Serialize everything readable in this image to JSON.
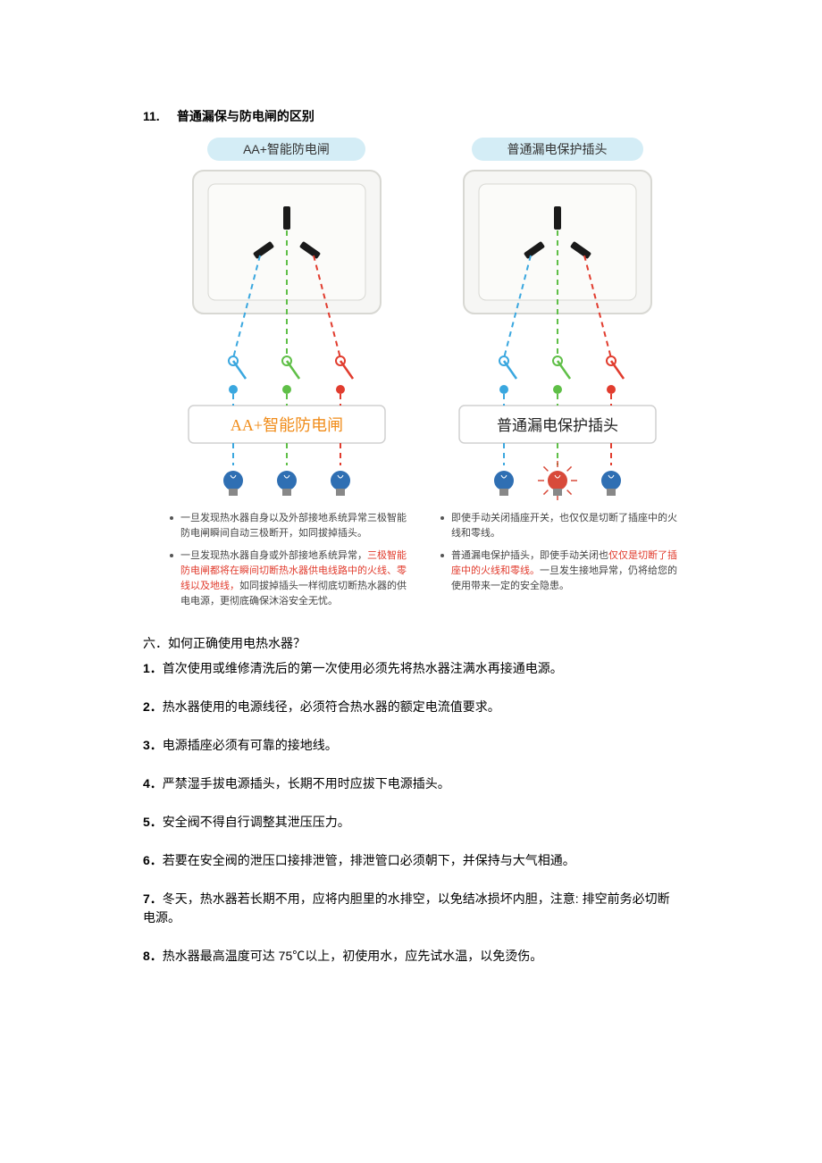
{
  "colors": {
    "live": "#e13c2e",
    "neutral": "#3aa7df",
    "ground": "#5fbf47",
    "pill_bg": "#d4edf6",
    "socket_body": "#f6f6f4",
    "socket_edge": "#d8d8d3",
    "slot": "#1a1a1a",
    "label_box_text_left": "#f08c1a",
    "bulb_off": "#2f6fb3",
    "bulb_on": "#d84a3a"
  },
  "title": {
    "num": "11.",
    "text": "普通漏保与防电闸的区别"
  },
  "left": {
    "pill": "AA+智能防电闸",
    "box_label": "AA+智能防电闸",
    "bulbs": [
      "off",
      "off",
      "off"
    ],
    "notes": [
      {
        "plain": "一旦发现热水器自身以及外部接地系统异常三极智能防电闸瞬间自动三极断开，如同拔掉插头。"
      },
      {
        "pre": "一旦发现热水器自身或外部接地系统异常，",
        "red": "三极智能防电闸都将在瞬间切断热水器供电线路中的火线、零线以及地线，",
        "post": "如同拔掉插头一样彻底切断热水器的供电电源，更彻底确保沐浴安全无忧。"
      }
    ]
  },
  "right": {
    "pill": "普通漏电保护插头",
    "box_label": "普通漏电保护插头",
    "bulbs": [
      "off",
      "on",
      "off"
    ],
    "notes": [
      {
        "plain": "即使手动关闭插座开关，也仅仅是切断了插座中的火线和零线。"
      },
      {
        "pre": "普通漏电保护插头，即使手动关闭也",
        "red": "仅仅是切断了插座中的火线和零线。",
        "post": "一旦发生接地异常，仍将给您的使用带来一定的安全隐患。"
      }
    ]
  },
  "section6": {
    "heading": "六．如何正确使用电热水器？",
    "items": [
      {
        "n": "1．",
        "t": "首次使用或维修清洗后的第一次使用必须先将热水器注满水再接通电源。"
      },
      {
        "n": "2．",
        "t": "热水器使用的电源线径，必须符合热水器的额定电流值要求。"
      },
      {
        "n": "3．",
        "t": "电源插座必须有可靠的接地线。"
      },
      {
        "n": "4．",
        "t": "严禁湿手拔电源插头，长期不用时应拔下电源插头。"
      },
      {
        "n": "5．",
        "t": "安全阀不得自行调整其泄压压力。"
      },
      {
        "n": "6．",
        "t": "若要在安全阀的泄压口接排泄管，排泄管口必须朝下，并保持与大气相通。"
      },
      {
        "n": "7．",
        "t": "冬天，热水器若长期不用，应将内胆里的水排空，以免结冰损坏内胆，注意: 排空前务必切断电源。"
      },
      {
        "n": "8．",
        "t": "热水器最高温度可达 75℃以上，初使用水，应先试水温，以免烫伤。"
      }
    ]
  }
}
